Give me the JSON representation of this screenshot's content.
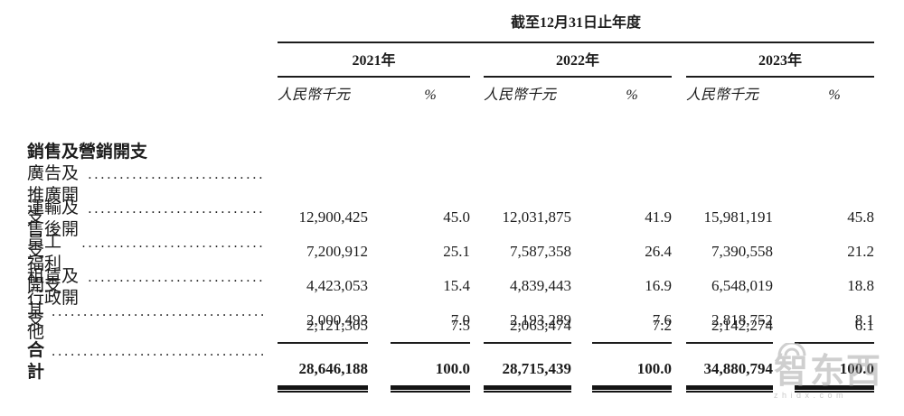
{
  "table": {
    "period_header": "截至12月31日止年度",
    "col_groups": [
      {
        "year": "2021年",
        "unit": "人民幣千元",
        "pct": "%"
      },
      {
        "year": "2022年",
        "unit": "人民幣千元",
        "pct": "%"
      },
      {
        "year": "2023年",
        "unit": "人民幣千元",
        "pct": "%"
      }
    ],
    "section_header": "銷售及營銷開支",
    "rows": [
      {
        "label": "廣告及推廣開支",
        "values": [
          "12,900,425",
          "45.0",
          "12,031,875",
          "41.9",
          "15,981,191",
          "45.8"
        ]
      },
      {
        "label": "運輸及售後開支",
        "values": [
          "7,200,912",
          "25.1",
          "7,587,358",
          "26.4",
          "7,390,558",
          "21.2"
        ]
      },
      {
        "label": "員工福利開支",
        "values": [
          "4,423,053",
          "15.4",
          "4,839,443",
          "16.9",
          "6,548,019",
          "18.8"
        ]
      },
      {
        "label": "租賃及行政開支",
        "values": [
          "2,000,493",
          "7.0",
          "2,193,289",
          "7.6",
          "2,818,752",
          "8.1"
        ]
      },
      {
        "label": "其他",
        "values": [
          "2,121,305",
          "7.5",
          "2,063,474",
          "7.2",
          "2,142,274",
          "6.1"
        ]
      }
    ],
    "total_row": {
      "label": "合計",
      "values": [
        "28,646,188",
        "100.0",
        "28,715,439",
        "100.0",
        "34,880,794",
        "100.0"
      ]
    }
  },
  "watermark": {
    "logo_text": "智东西",
    "url_text": "zhidx.com"
  },
  "colors": {
    "text": "#1c1c1c",
    "rule": "#1c1c1c",
    "background": "#ffffff",
    "watermark": "#a8a8a8"
  }
}
